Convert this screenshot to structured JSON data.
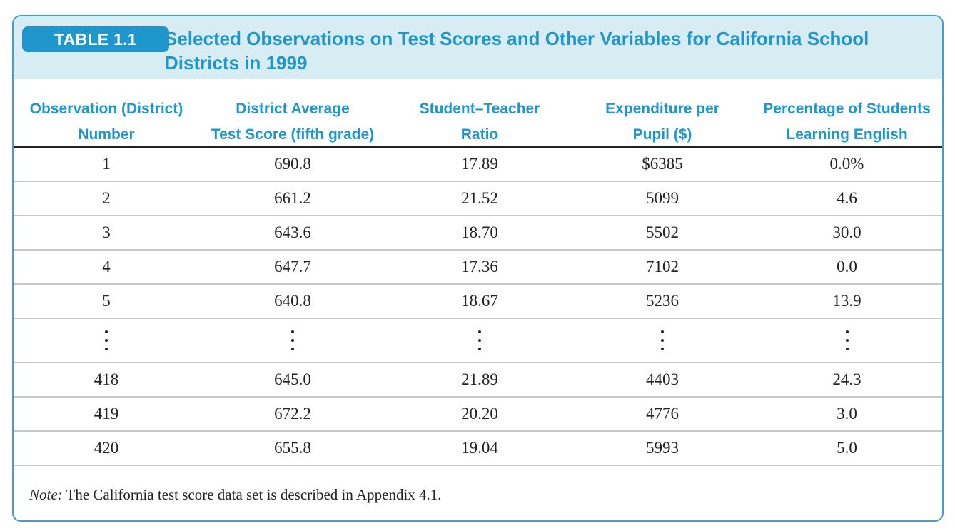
{
  "table": {
    "badge": "TABLE 1.1",
    "title_line1": "Selected Observations on Test Scores and Other Variables for California School",
    "title_line2": "Districts in 1999",
    "headers": [
      {
        "line1": "Observation (District)",
        "line2": "Number"
      },
      {
        "line1": "District Average",
        "line2": "Test Score (fifth grade)"
      },
      {
        "line1": "Student–Teacher",
        "line2": "Ratio"
      },
      {
        "line1": "Expenditure per",
        "line2": "Pupil ($)"
      },
      {
        "line1": "Percentage of Students",
        "line2": "Learning English"
      }
    ],
    "rows": [
      [
        "1",
        "690.8",
        "17.89",
        "$6385",
        "0.0%"
      ],
      [
        "2",
        "661.2",
        "21.52",
        "5099",
        "4.6"
      ],
      [
        "3",
        "643.6",
        "18.70",
        "5502",
        "30.0"
      ],
      [
        "4",
        "647.7",
        "17.36",
        "7102",
        "0.0"
      ],
      [
        "5",
        "640.8",
        "18.67",
        "5236",
        "13.9"
      ],
      [
        "418",
        "645.0",
        "21.89",
        "4403",
        "24.3"
      ],
      [
        "419",
        "672.2",
        "20.20",
        "4776",
        "3.0"
      ],
      [
        "420",
        "655.8",
        "19.04",
        "5993",
        "5.0"
      ]
    ],
    "note_label": "Note:",
    "note_text": " The California test score data set is described in Appendix 4.1."
  }
}
